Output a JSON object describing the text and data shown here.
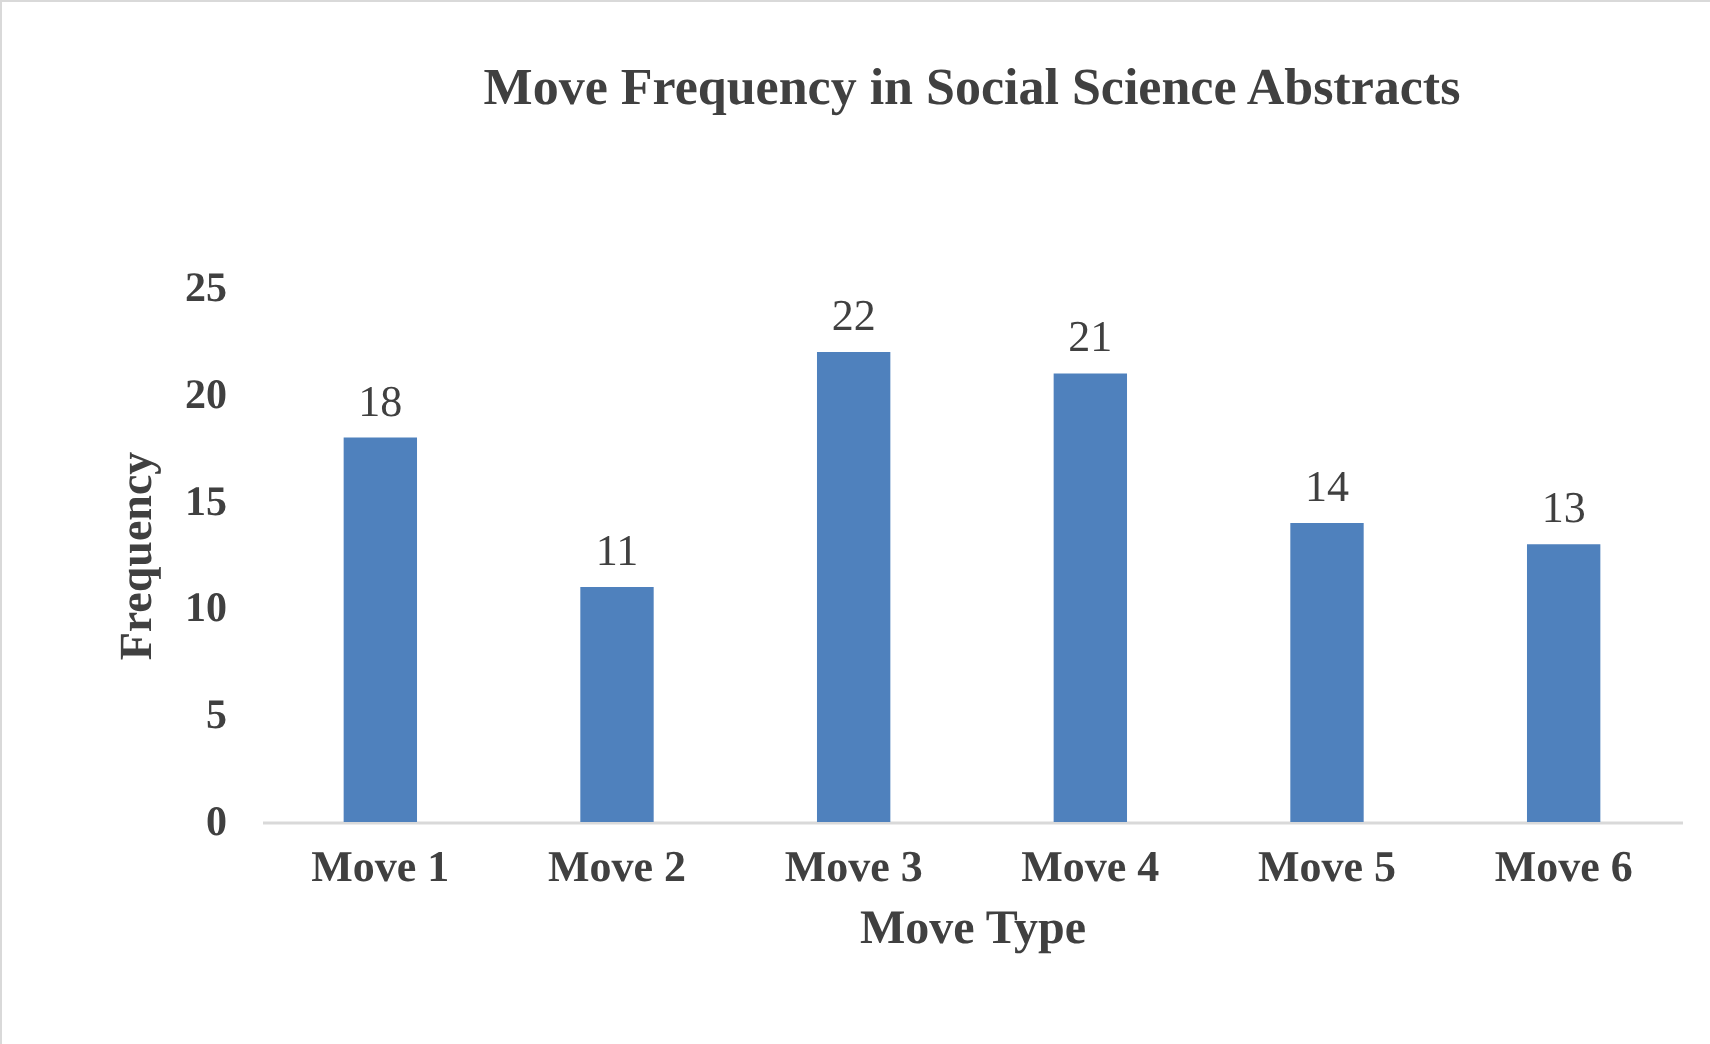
{
  "chart_data": {
    "type": "bar",
    "title": "Move Frequency in Social Science Abstracts",
    "xlabel": "Move Type",
    "ylabel": "Frequency",
    "categories": [
      "Move 1",
      "Move 2",
      "Move 3",
      "Move 4",
      "Move 5",
      "Move 6"
    ],
    "values": [
      18,
      11,
      22,
      21,
      14,
      13
    ],
    "color": "#4f81bd",
    "ylim": [
      0,
      25
    ],
    "yticks": [
      0,
      5,
      10,
      15,
      20,
      25
    ],
    "data_labels": true
  }
}
